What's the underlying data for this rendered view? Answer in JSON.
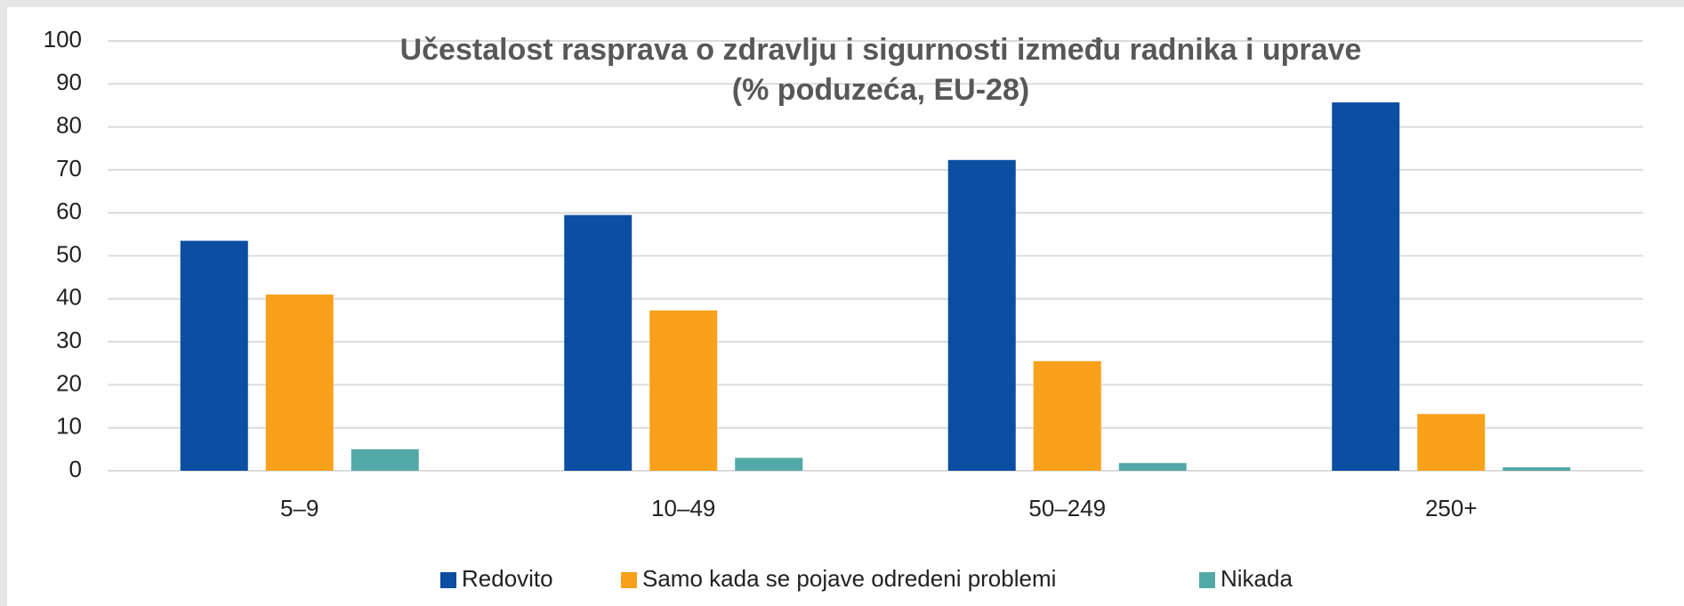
{
  "chart_data": {
    "type": "bar",
    "title": "Učestalost rasprava o zdravlju i sigurnosti između radnika i uprave",
    "subtitle": "(% poduzeća, EU-28)",
    "categories": [
      "5–9",
      "10–49",
      "50–249",
      "250+"
    ],
    "series": [
      {
        "name": "Redovito",
        "color": "#0b4ea2",
        "values": [
          53.5,
          59.5,
          72.3,
          85.7
        ]
      },
      {
        "name": "Samo kada se pojave odredeni problemi",
        "color": "#f9a11b",
        "values": [
          41,
          37.3,
          25.5,
          13.2
        ]
      },
      {
        "name": "Nikada",
        "color": "#52a9a7",
        "values": [
          5,
          3,
          1.8,
          0.8
        ]
      }
    ],
    "ylim": [
      0,
      100
    ],
    "yticks": [
      0,
      10,
      20,
      30,
      40,
      50,
      60,
      70,
      80,
      90,
      100
    ],
    "grid": true,
    "legend": "bottom"
  }
}
